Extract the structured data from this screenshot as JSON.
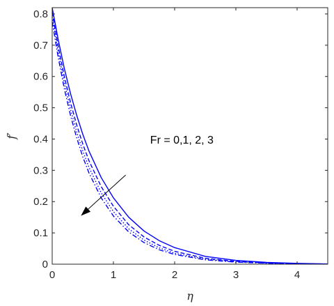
{
  "chart_data": {
    "type": "line",
    "title": "",
    "xlabel": "η",
    "ylabel": "f′",
    "xlim": [
      0,
      4.5
    ],
    "ylim": [
      0,
      0.82
    ],
    "x_ticks": [
      0,
      1,
      2,
      3,
      4
    ],
    "y_ticks": [
      0,
      0.1,
      0.2,
      0.3,
      0.4,
      0.5,
      0.6,
      0.7,
      0.8
    ],
    "x_tick_labels": [
      "0",
      "1",
      "2",
      "3",
      "4"
    ],
    "y_tick_labels": [
      "0",
      "0.1",
      "0.2",
      "0.3",
      "0.4",
      "0.5",
      "0.6",
      "0.7",
      "0.8"
    ],
    "grid": false,
    "line_color": "#0000ff",
    "x": [
      0,
      0.1,
      0.2,
      0.3,
      0.4,
      0.5,
      0.6,
      0.8,
      1.0,
      1.25,
      1.5,
      1.75,
      2.0,
      2.5,
      3.0,
      3.5,
      4.0,
      4.5
    ],
    "series": [
      {
        "style": "solid",
        "values": [
          0.82,
          0.716,
          0.624,
          0.545,
          0.476,
          0.415,
          0.362,
          0.277,
          0.212,
          0.15,
          0.106,
          0.075,
          0.053,
          0.025,
          0.012,
          0.0058,
          0.0025,
          0.0008
        ]
      },
      {
        "style": "dashed",
        "values": [
          0.805,
          0.694,
          0.598,
          0.516,
          0.445,
          0.384,
          0.331,
          0.248,
          0.185,
          0.126,
          0.087,
          0.06,
          0.041,
          0.019,
          0.009,
          0.0042,
          0.0018,
          0.0006
        ]
      },
      {
        "style": "dotted",
        "values": [
          0.79,
          0.676,
          0.578,
          0.495,
          0.423,
          0.362,
          0.31,
          0.228,
          0.168,
          0.113,
          0.077,
          0.052,
          0.035,
          0.016,
          0.0075,
          0.0035,
          0.0015,
          0.0005
        ]
      },
      {
        "style": "dashdot",
        "values": [
          0.775,
          0.659,
          0.559,
          0.475,
          0.404,
          0.343,
          0.292,
          0.212,
          0.154,
          0.103,
          0.069,
          0.046,
          0.031,
          0.014,
          0.0065,
          0.003,
          0.0013,
          0.0004
        ]
      }
    ],
    "annotation": {
      "text": "Fr = 0,1, 2, 3",
      "text_x": 1.6,
      "text_y": 0.385,
      "arrow_from": [
        1.2,
        0.285
      ],
      "arrow_to": [
        0.47,
        0.155
      ]
    }
  }
}
